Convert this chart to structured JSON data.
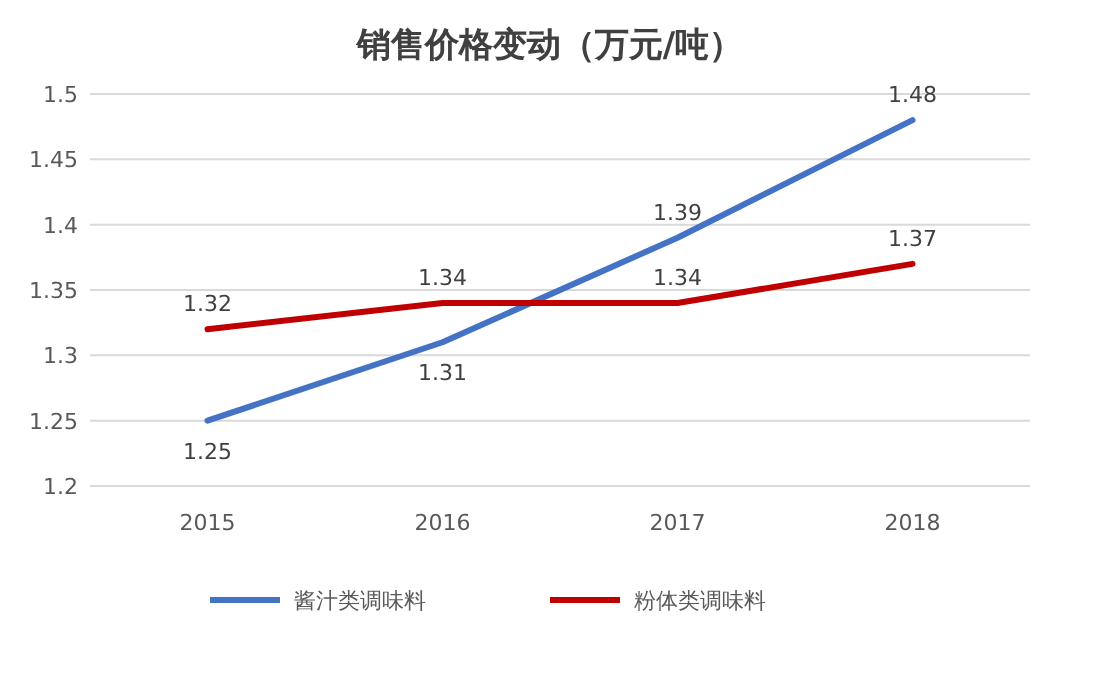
{
  "chart_data": {
    "type": "line",
    "title": "销售价格变动（万元/吨）",
    "categories": [
      "2015",
      "2016",
      "2017",
      "2018"
    ],
    "series": [
      {
        "name": "酱汁类调味料",
        "color": "#4472c4",
        "values": [
          1.25,
          1.31,
          1.39,
          1.48
        ]
      },
      {
        "name": "粉体类调味料",
        "color": "#c00000",
        "values": [
          1.32,
          1.34,
          1.34,
          1.37
        ]
      }
    ],
    "ylim": [
      1.2,
      1.5
    ],
    "yticks": [
      1.2,
      1.25,
      1.3,
      1.35,
      1.4,
      1.45,
      1.5
    ],
    "grid": "y",
    "legend": "bottom",
    "data_labels": true
  }
}
